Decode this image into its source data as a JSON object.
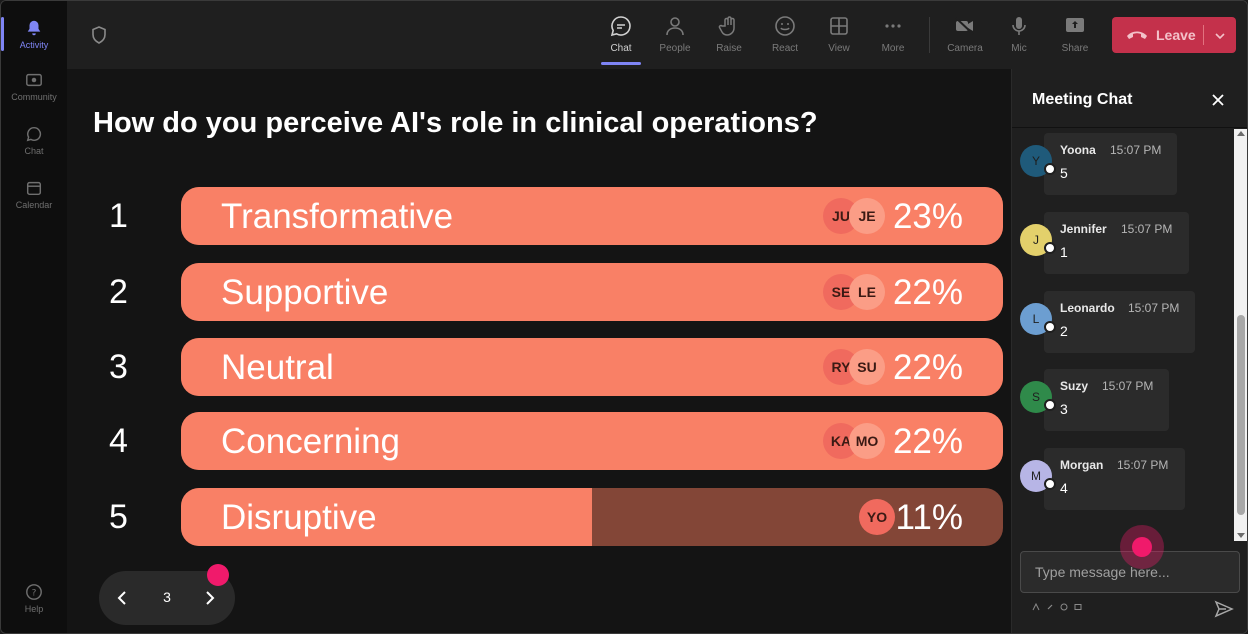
{
  "rail": {
    "items": [
      {
        "label": "Activity",
        "icon": "bell-icon",
        "active": true
      },
      {
        "label": "Community",
        "icon": "community-icon",
        "active": false
      },
      {
        "label": "Chat",
        "icon": "chat-icon",
        "active": false
      },
      {
        "label": "Calendar",
        "icon": "calendar-icon",
        "active": false
      }
    ],
    "help_label": "Help"
  },
  "toolbar": {
    "chat": "Chat",
    "people": "People",
    "raise": "Raise",
    "react": "React",
    "view": "View",
    "more": "More",
    "camera": "Camera",
    "mic": "Mic",
    "share": "Share",
    "leave": "Leave"
  },
  "poll": {
    "question": "How do you perceive AI's role in clinical operations?",
    "options": [
      {
        "num": "1",
        "label": "Transformative",
        "pct": "23%",
        "fraction": 1.0,
        "avatars": [
          "JU",
          "JE"
        ]
      },
      {
        "num": "2",
        "label": "Supportive",
        "pct": "22%",
        "fraction": 1.0,
        "avatars": [
          "SE",
          "LE"
        ]
      },
      {
        "num": "3",
        "label": "Neutral",
        "pct": "22%",
        "fraction": 1.0,
        "avatars": [
          "RY",
          "SU"
        ]
      },
      {
        "num": "4",
        "label": "Concerning",
        "pct": "22%",
        "fraction": 1.0,
        "avatars": [
          "KA",
          "MO"
        ]
      },
      {
        "num": "5",
        "label": "Disruptive",
        "pct": "11%",
        "fraction": 0.5,
        "avatars": [
          "YO"
        ]
      }
    ],
    "page": "3"
  },
  "chat": {
    "title": "Meeting Chat",
    "messages": [
      {
        "initial": "Y",
        "name": "Yoona",
        "time": "15:07 PM",
        "text": "5",
        "color": "#1f5a7a"
      },
      {
        "initial": "J",
        "name": "Jennifer",
        "time": "15:07 PM",
        "text": "1",
        "color": "#e3d06b"
      },
      {
        "initial": "L",
        "name": "Leonardo",
        "time": "15:07 PM",
        "text": "2",
        "color": "#6c9ed1"
      },
      {
        "initial": "S",
        "name": "Suzy",
        "time": "15:07 PM",
        "text": "3",
        "color": "#2f8a4a"
      },
      {
        "initial": "M",
        "name": "Morgan",
        "time": "15:07 PM",
        "text": "4",
        "color": "#b7b5e6"
      }
    ],
    "input_placeholder": "Type message here..."
  },
  "colors": {
    "bar_fill": "#f98066",
    "bar_track": "#834637",
    "leave": "#c4314b",
    "accent": "#7f85f5"
  }
}
